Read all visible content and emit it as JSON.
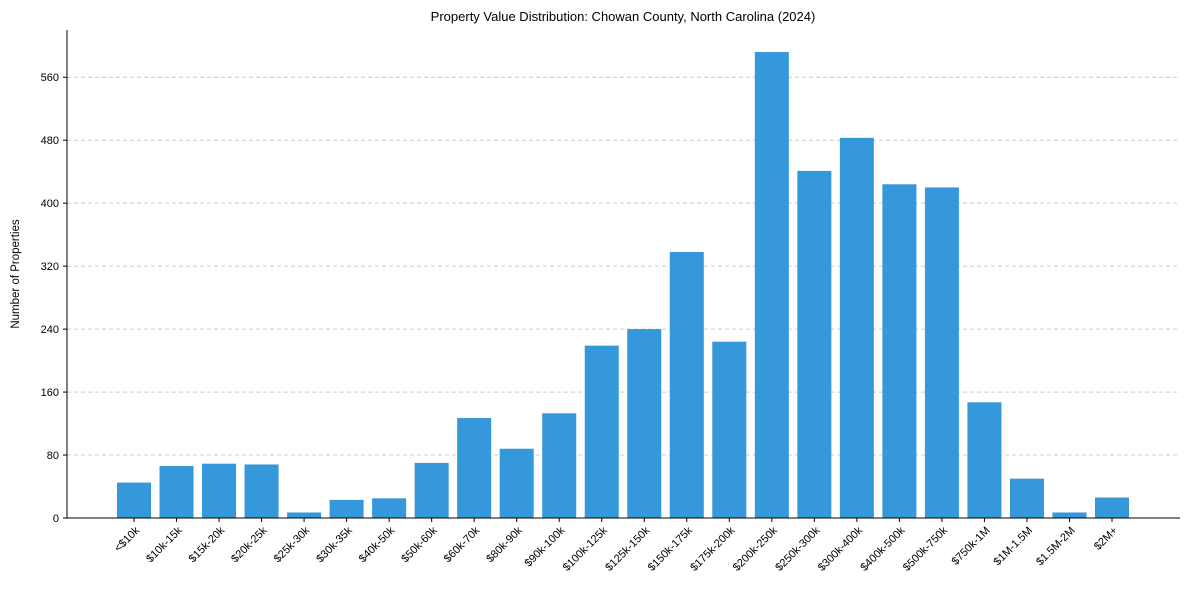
{
  "chart_data": {
    "type": "bar",
    "title": "Property Value Distribution: Chowan County, North Carolina (2024)",
    "xlabel": "",
    "ylabel": "Number of Properties",
    "categories": [
      "<$10k",
      "$10k-15k",
      "$15k-20k",
      "$20k-25k",
      "$25k-30k",
      "$30k-35k",
      "$40k-50k",
      "$50k-60k",
      "$60k-70k",
      "$80k-90k",
      "$90k-100k",
      "$100k-125k",
      "$125k-150k",
      "$150k-175k",
      "$175k-200k",
      "$200k-250k",
      "$250k-300k",
      "$300k-400k",
      "$400k-500k",
      "$500k-750k",
      "$750k-1M",
      "$1M-1.5M",
      "$1.5M-2M",
      "$2M+"
    ],
    "values": [
      45,
      66,
      69,
      68,
      7,
      23,
      25,
      70,
      127,
      88,
      133,
      219,
      240,
      338,
      224,
      592,
      441,
      483,
      424,
      420,
      147,
      50,
      7,
      26
    ],
    "ylim": [
      0,
      620
    ],
    "yticks": [
      0,
      80,
      160,
      240,
      320,
      400,
      480,
      560
    ],
    "grid": "y-dashed",
    "color": "#3498db"
  }
}
